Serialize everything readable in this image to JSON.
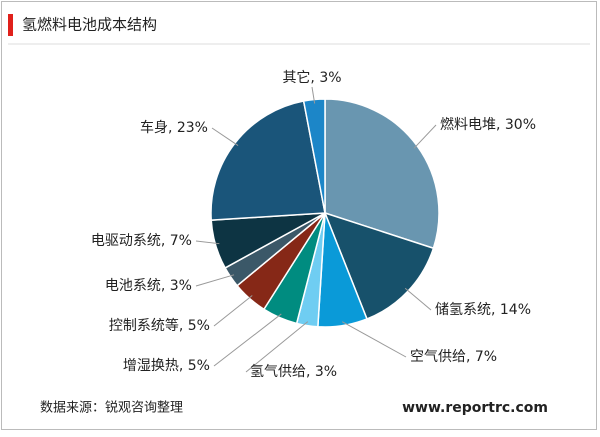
{
  "chart_data": {
    "type": "pie",
    "title": "氢燃料电池成本结构",
    "values": [
      30,
      14,
      7,
      3,
      5,
      5,
      3,
      7,
      23,
      3
    ],
    "value_labels": [
      "燃料电堆, 30%",
      "储氢系统, 14%",
      "空气供给, 7%",
      "氢气供给, 3%",
      "增湿换热, 5%",
      "控制系统等, 5%",
      "电池系统, 3%",
      "电驱动系统, 7%",
      "车身, 23%",
      "其它, 3%"
    ],
    "colors": [
      "#6996b0",
      "#17516b",
      "#0a9ad8",
      "#6fcdf2",
      "#008c80",
      "#862817",
      "#3b5868",
      "#0d3443",
      "#1a557a",
      "#1c86c8"
    ],
    "source": "数据来源：锐观咨询整理",
    "website": "www.reportrc.com"
  }
}
